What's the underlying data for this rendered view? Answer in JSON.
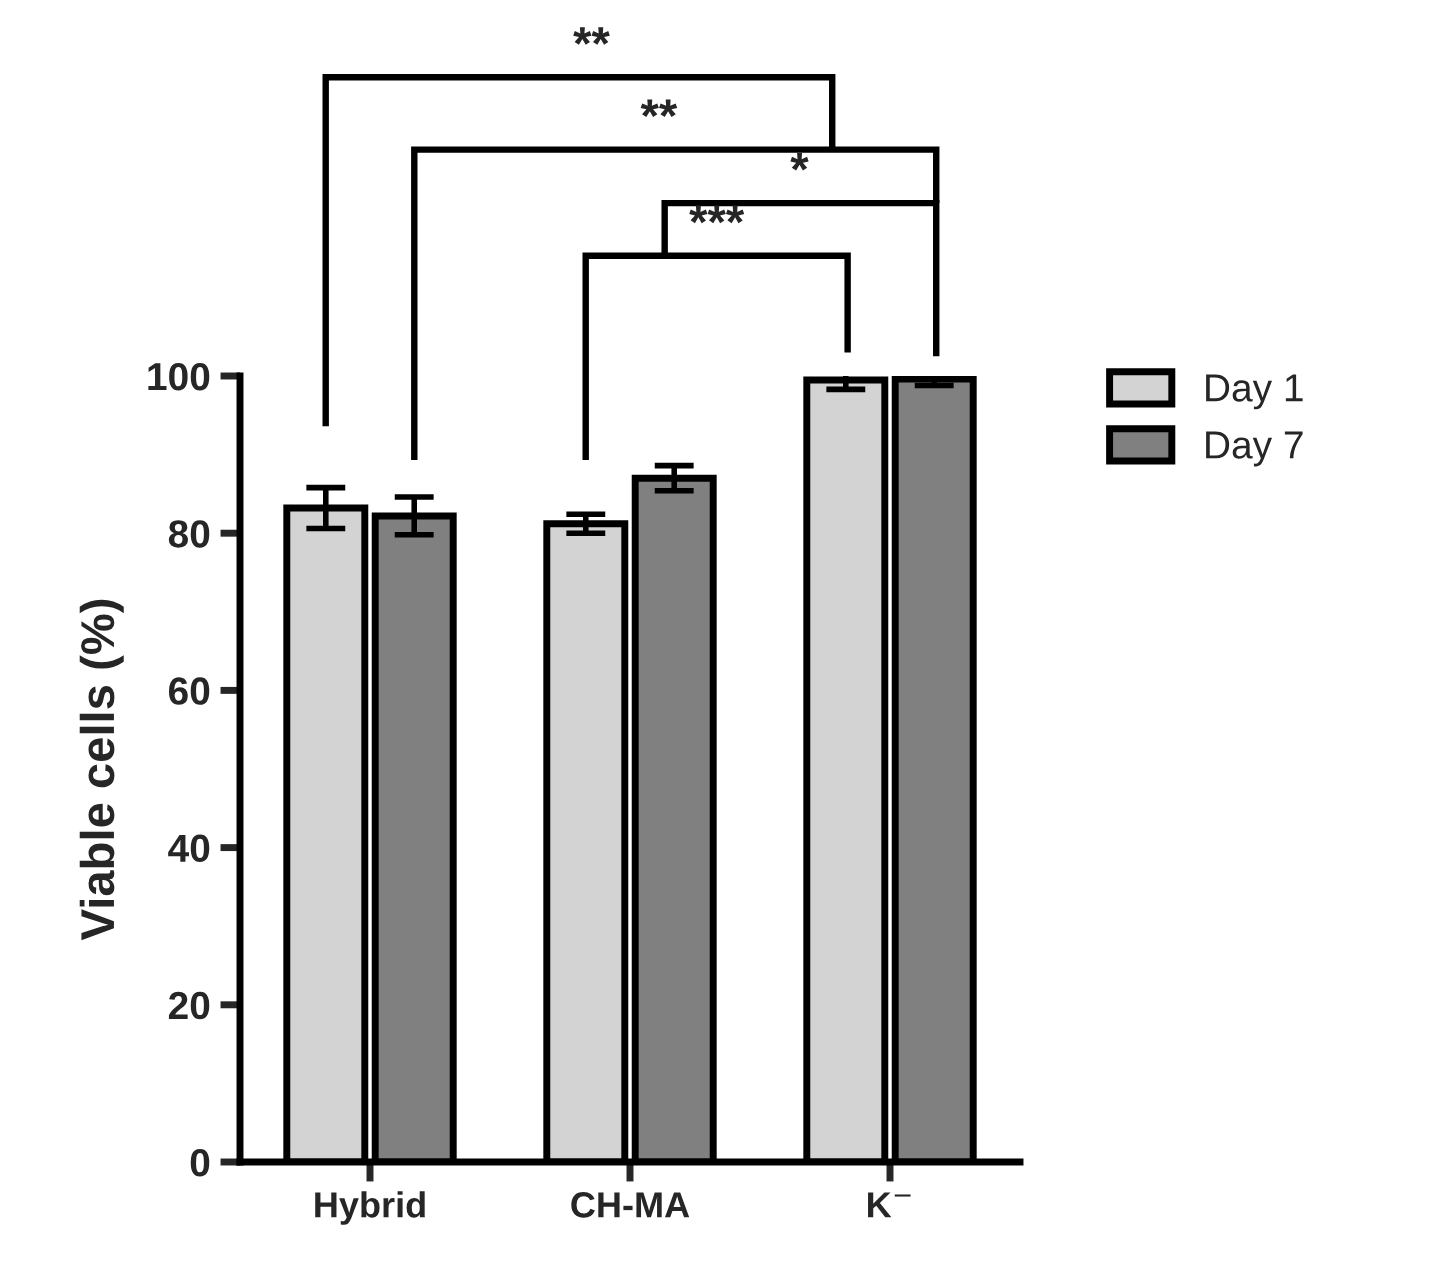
{
  "chart_data": {
    "type": "bar",
    "ylabel": "Viable cells (%)",
    "categories": [
      "Hybrid",
      "CH-MA",
      "K$^{−}$"
    ],
    "series": [
      {
        "name": "Day 1",
        "color": "#d3d3d3",
        "values": [
          83.2,
          81.2,
          99.5
        ],
        "errors": [
          2.6,
          1.2,
          1.2
        ]
      },
      {
        "name": "Day 7",
        "color": "#808080",
        "values": [
          82.2,
          87.0,
          99.6
        ],
        "errors": [
          2.4,
          1.6,
          0.8
        ]
      }
    ],
    "ylim": [
      0,
      100
    ],
    "yticks": [
      0,
      20,
      40,
      60,
      80,
      100
    ],
    "grid": false,
    "legend": "right",
    "annotations": [
      "**",
      "**",
      "*",
      "***"
    ]
  }
}
